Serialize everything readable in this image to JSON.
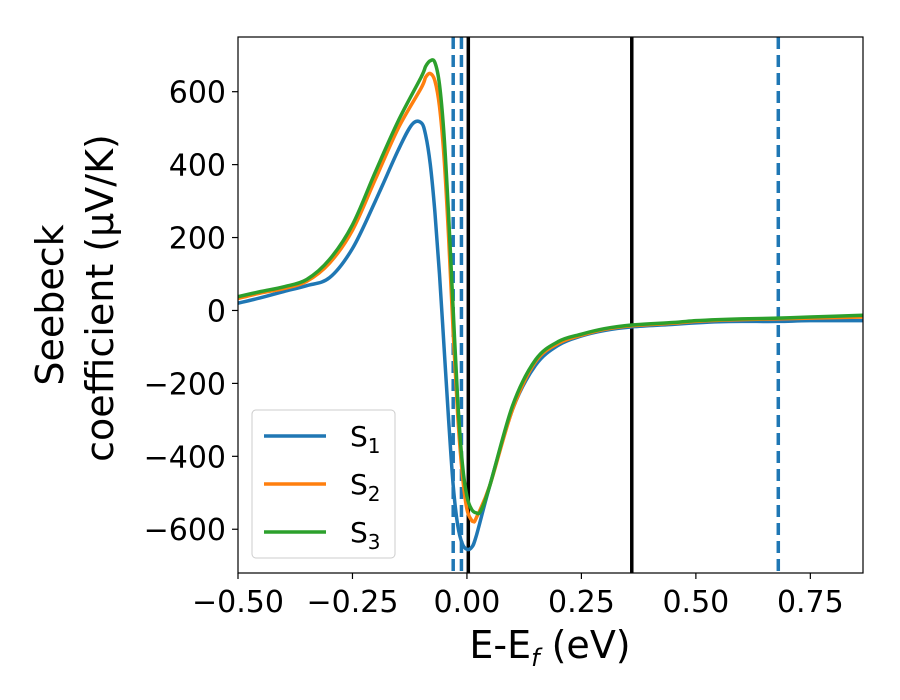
{
  "chart_data": {
    "type": "line",
    "xlabel": "E-E",
    "xlabel_sub": "f",
    "xlabel_unit": " (eV)",
    "ylabel_line1": "Seebeck",
    "ylabel_line2": "coefficient  (μV/K)",
    "xlim": [
      -0.5,
      0.865
    ],
    "ylim": [
      -720,
      750
    ],
    "xticks": [
      -0.5,
      -0.25,
      0.0,
      0.25,
      0.5,
      0.75
    ],
    "xtick_labels": [
      "−0.50",
      "−0.25",
      "0.00",
      "0.25",
      "0.50",
      "0.75"
    ],
    "yticks": [
      600,
      400,
      200,
      0,
      -200,
      -400,
      -600
    ],
    "ytick_labels": [
      "600",
      "400",
      "200",
      "0",
      "−200",
      "−400",
      "−600"
    ],
    "grid": false,
    "legend_position": "lower-left",
    "vlines": [
      {
        "x": -0.03,
        "style": "dashed",
        "color": "#1f77b4"
      },
      {
        "x": -0.012,
        "style": "dashed",
        "color": "#1f77b4"
      },
      {
        "x": 0.003,
        "style": "solid",
        "color": "#000000"
      },
      {
        "x": 0.36,
        "style": "solid",
        "color": "#000000"
      },
      {
        "x": 0.68,
        "style": "dashed",
        "color": "#1f77b4"
      }
    ],
    "series": [
      {
        "name": "S",
        "sub": "1",
        "color": "#1f77b4",
        "x": [
          -0.5,
          -0.45,
          -0.4,
          -0.35,
          -0.3,
          -0.25,
          -0.2,
          -0.15,
          -0.12,
          -0.1,
          -0.09,
          -0.08,
          -0.07,
          -0.06,
          -0.05,
          -0.04,
          -0.03,
          -0.02,
          -0.01,
          0.0,
          0.01,
          0.02,
          0.05,
          0.1,
          0.15,
          0.2,
          0.25,
          0.3,
          0.36,
          0.45,
          0.5,
          0.55,
          0.6,
          0.68,
          0.75,
          0.865
        ],
        "y": [
          20,
          35,
          52,
          68,
          90,
          170,
          300,
          440,
          510,
          515,
          480,
          400,
          270,
          100,
          -100,
          -300,
          -480,
          -590,
          -640,
          -655,
          -650,
          -620,
          -480,
          -270,
          -150,
          -95,
          -70,
          -55,
          -45,
          -38,
          -34,
          -31,
          -30,
          -30,
          -28,
          -28
        ]
      },
      {
        "name": "S",
        "sub": "2",
        "color": "#ff7f0e",
        "x": [
          -0.5,
          -0.45,
          -0.4,
          -0.35,
          -0.3,
          -0.25,
          -0.2,
          -0.15,
          -0.1,
          -0.09,
          -0.08,
          -0.07,
          -0.06,
          -0.05,
          -0.04,
          -0.03,
          -0.02,
          -0.01,
          0.0,
          0.01,
          0.015,
          0.02,
          0.05,
          0.1,
          0.15,
          0.2,
          0.25,
          0.3,
          0.36,
          0.45,
          0.5,
          0.55,
          0.6,
          0.68,
          0.75,
          0.865
        ],
        "y": [
          33,
          48,
          60,
          80,
          130,
          220,
          360,
          500,
          610,
          640,
          650,
          630,
          560,
          420,
          200,
          -60,
          -290,
          -450,
          -545,
          -575,
          -578,
          -570,
          -480,
          -270,
          -140,
          -90,
          -68,
          -52,
          -42,
          -35,
          -30,
          -27,
          -25,
          -23,
          -21,
          -18
        ]
      },
      {
        "name": "S",
        "sub": "3",
        "color": "#2ca02c",
        "x": [
          -0.5,
          -0.45,
          -0.4,
          -0.35,
          -0.3,
          -0.25,
          -0.2,
          -0.15,
          -0.1,
          -0.09,
          -0.08,
          -0.07,
          -0.06,
          -0.05,
          -0.04,
          -0.03,
          -0.02,
          -0.01,
          0.0,
          0.01,
          0.02,
          0.03,
          0.05,
          0.1,
          0.15,
          0.2,
          0.25,
          0.3,
          0.36,
          0.45,
          0.5,
          0.55,
          0.6,
          0.68,
          0.75,
          0.865
        ],
        "y": [
          38,
          52,
          65,
          85,
          140,
          235,
          380,
          520,
          640,
          670,
          685,
          680,
          620,
          480,
          260,
          0,
          -250,
          -420,
          -510,
          -545,
          -555,
          -550,
          -480,
          -260,
          -135,
          -85,
          -65,
          -50,
          -40,
          -33,
          -28,
          -25,
          -23,
          -21,
          -18,
          -13
        ]
      }
    ]
  }
}
